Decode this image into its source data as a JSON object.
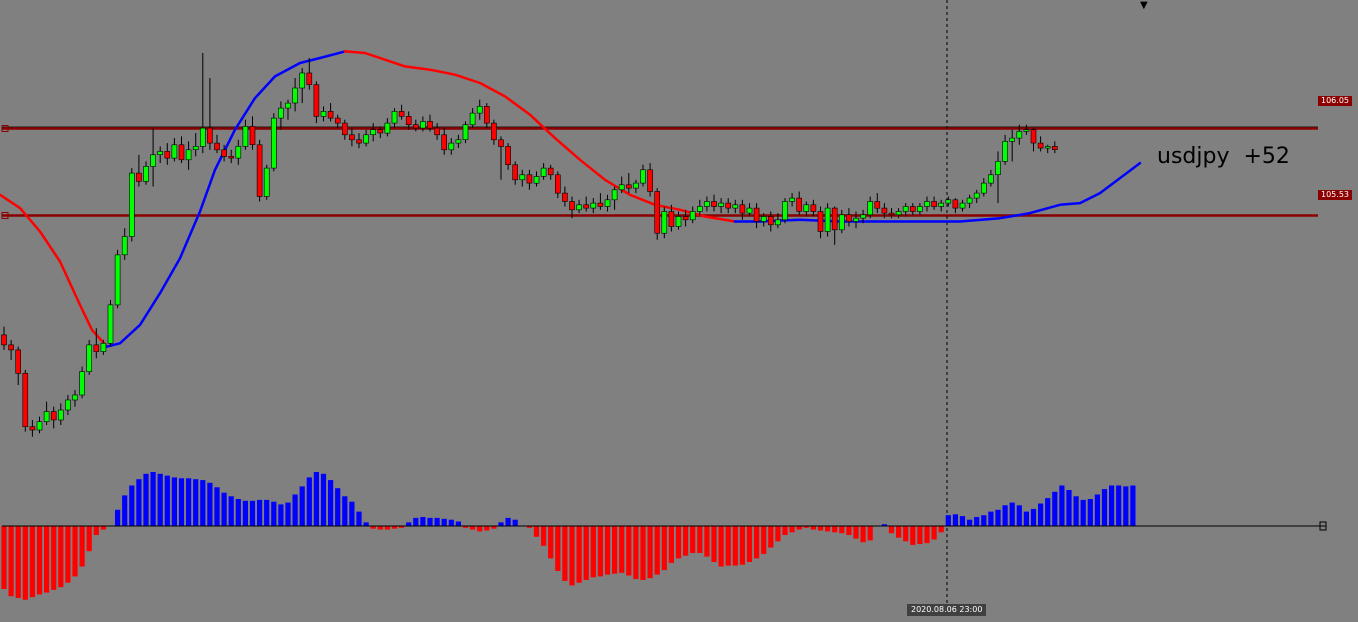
{
  "chart_data": {
    "type": "candlestick",
    "symbol_label": "usdjpy  +52",
    "selected_time": "2020.08.06 23:00",
    "levels": [
      {
        "price": 106.05,
        "label": "106.05"
      },
      {
        "price": 105.53,
        "label": "105.53"
      }
    ],
    "current_price": 105.91,
    "price_range": [
      104.18,
      106.65
    ],
    "colors": {
      "background": "#808080",
      "bull": "#00ff00",
      "bear": "#ff0000",
      "wick": "#000000",
      "level": "#8b0000",
      "ma_up": "#0000ff",
      "ma_down": "#ff0000",
      "hist_pos": "#0000ff",
      "hist_neg": "#ff0000"
    },
    "candles": [
      [
        104.81,
        104.86,
        104.72,
        104.75
      ],
      [
        104.75,
        104.78,
        104.66,
        104.72
      ],
      [
        104.72,
        104.74,
        104.51,
        104.58
      ],
      [
        104.58,
        104.6,
        104.23,
        104.26
      ],
      [
        104.26,
        104.3,
        104.2,
        104.24
      ],
      [
        104.24,
        104.32,
        104.22,
        104.29
      ],
      [
        104.29,
        104.41,
        104.27,
        104.35
      ],
      [
        104.35,
        104.38,
        104.25,
        104.3
      ],
      [
        104.3,
        104.4,
        104.27,
        104.36
      ],
      [
        104.36,
        104.45,
        104.33,
        104.42
      ],
      [
        104.42,
        104.48,
        104.38,
        104.45
      ],
      [
        104.45,
        104.62,
        104.43,
        104.59
      ],
      [
        104.59,
        104.78,
        104.57,
        104.75
      ],
      [
        104.75,
        104.85,
        104.67,
        104.71
      ],
      [
        104.71,
        104.78,
        104.69,
        104.76
      ],
      [
        104.76,
        105.02,
        104.74,
        104.99
      ],
      [
        104.99,
        105.32,
        104.97,
        105.29
      ],
      [
        105.29,
        105.45,
        105.26,
        105.4
      ],
      [
        105.4,
        105.81,
        105.37,
        105.78
      ],
      [
        105.78,
        105.89,
        105.7,
        105.73
      ],
      [
        105.73,
        105.85,
        105.71,
        105.82
      ],
      [
        105.82,
        106.05,
        105.7,
        105.89
      ],
      [
        105.89,
        105.94,
        105.84,
        105.91
      ],
      [
        105.91,
        105.96,
        105.83,
        105.87
      ],
      [
        105.87,
        105.99,
        105.85,
        105.95
      ],
      [
        105.95,
        106.0,
        105.84,
        105.86
      ],
      [
        105.86,
        105.97,
        105.8,
        105.92
      ],
      [
        105.92,
        106.02,
        105.88,
        105.94
      ],
      [
        105.94,
        106.5,
        105.9,
        106.05
      ],
      [
        106.05,
        106.35,
        105.92,
        105.96
      ],
      [
        105.96,
        106.01,
        105.9,
        105.92
      ],
      [
        105.92,
        105.95,
        105.85,
        105.88
      ],
      [
        105.88,
        105.92,
        105.84,
        105.87
      ],
      [
        105.87,
        105.98,
        105.83,
        105.94
      ],
      [
        105.94,
        106.1,
        105.92,
        106.06
      ],
      [
        106.06,
        106.12,
        105.92,
        105.95
      ],
      [
        105.95,
        105.98,
        105.61,
        105.64
      ],
      [
        105.64,
        105.83,
        105.62,
        105.81
      ],
      [
        105.81,
        106.14,
        105.79,
        106.11
      ],
      [
        106.11,
        106.21,
        106.04,
        106.17
      ],
      [
        106.17,
        106.22,
        106.1,
        106.2
      ],
      [
        106.2,
        106.35,
        106.15,
        106.29
      ],
      [
        106.29,
        106.41,
        106.2,
        106.38
      ],
      [
        106.38,
        106.47,
        106.28,
        106.31
      ],
      [
        106.31,
        106.33,
        106.08,
        106.12
      ],
      [
        106.12,
        106.18,
        106.09,
        106.15
      ],
      [
        106.15,
        106.2,
        106.09,
        106.11
      ],
      [
        106.11,
        106.13,
        106.05,
        106.08
      ],
      [
        106.08,
        106.1,
        105.98,
        106.01
      ],
      [
        106.01,
        106.05,
        105.94,
        105.98
      ],
      [
        105.98,
        106.02,
        105.93,
        105.96
      ],
      [
        105.96,
        106.04,
        105.94,
        106.01
      ],
      [
        106.01,
        106.08,
        105.97,
        106.04
      ],
      [
        106.04,
        106.06,
        105.99,
        106.02
      ],
      [
        106.02,
        106.11,
        106.0,
        106.08
      ],
      [
        106.08,
        106.17,
        106.05,
        106.15
      ],
      [
        106.15,
        106.19,
        106.1,
        106.12
      ],
      [
        106.12,
        106.15,
        106.04,
        106.07
      ],
      [
        106.07,
        106.1,
        106.03,
        106.05
      ],
      [
        106.05,
        106.12,
        106.03,
        106.09
      ],
      [
        106.09,
        106.13,
        106.03,
        106.05
      ],
      [
        106.05,
        106.08,
        105.98,
        106.01
      ],
      [
        106.01,
        106.05,
        105.89,
        105.92
      ],
      [
        105.92,
        105.99,
        105.89,
        105.96
      ],
      [
        105.96,
        106.01,
        105.93,
        105.98
      ],
      [
        105.98,
        106.09,
        105.96,
        106.07
      ],
      [
        106.07,
        106.17,
        106.05,
        106.14
      ],
      [
        106.14,
        106.22,
        106.1,
        106.18
      ],
      [
        106.18,
        106.2,
        106.05,
        106.08
      ],
      [
        106.08,
        106.1,
        105.95,
        105.98
      ],
      [
        105.98,
        106.0,
        105.74,
        105.94
      ],
      [
        105.94,
        105.96,
        105.8,
        105.83
      ],
      [
        105.83,
        105.85,
        105.71,
        105.74
      ],
      [
        105.74,
        105.8,
        105.7,
        105.77
      ],
      [
        105.77,
        105.8,
        105.68,
        105.72
      ],
      [
        105.72,
        105.79,
        105.7,
        105.76
      ],
      [
        105.76,
        105.84,
        105.74,
        105.81
      ],
      [
        105.81,
        105.83,
        105.74,
        105.77
      ],
      [
        105.77,
        105.79,
        105.63,
        105.66
      ],
      [
        105.66,
        105.7,
        105.58,
        105.61
      ],
      [
        105.61,
        105.64,
        105.51,
        105.56
      ],
      [
        105.56,
        105.62,
        105.54,
        105.59
      ],
      [
        105.59,
        105.64,
        105.55,
        105.57
      ],
      [
        105.57,
        105.63,
        105.54,
        105.6
      ],
      [
        105.6,
        105.66,
        105.56,
        105.58
      ],
      [
        105.58,
        105.65,
        105.55,
        105.62
      ],
      [
        105.62,
        105.7,
        105.56,
        105.68
      ],
      [
        105.68,
        105.76,
        105.66,
        105.71
      ],
      [
        105.71,
        105.78,
        105.66,
        105.69
      ],
      [
        105.69,
        105.74,
        105.66,
        105.72
      ],
      [
        105.72,
        105.83,
        105.7,
        105.8
      ],
      [
        105.8,
        105.84,
        105.64,
        105.67
      ],
      [
        105.67,
        105.69,
        105.38,
        105.42
      ],
      [
        105.42,
        105.58,
        105.39,
        105.55
      ],
      [
        105.55,
        105.59,
        105.43,
        105.46
      ],
      [
        105.46,
        105.55,
        105.44,
        105.52
      ],
      [
        105.52,
        105.56,
        105.46,
        105.5
      ],
      [
        105.5,
        105.58,
        105.48,
        105.55
      ],
      [
        105.55,
        105.62,
        105.52,
        105.58
      ],
      [
        105.58,
        105.64,
        105.55,
        105.61
      ],
      [
        105.61,
        105.65,
        105.55,
        105.58
      ],
      [
        105.58,
        105.63,
        105.54,
        105.6
      ],
      [
        105.6,
        105.63,
        105.54,
        105.57
      ],
      [
        105.57,
        105.62,
        105.54,
        105.59
      ],
      [
        105.59,
        105.62,
        105.5,
        105.54
      ],
      [
        105.54,
        105.6,
        105.52,
        105.57
      ],
      [
        105.57,
        105.6,
        105.45,
        105.49
      ],
      [
        105.49,
        105.54,
        105.46,
        105.52
      ],
      [
        105.52,
        105.55,
        105.43,
        105.47
      ],
      [
        105.47,
        105.54,
        105.45,
        105.5
      ],
      [
        105.5,
        105.63,
        105.48,
        105.61
      ],
      [
        105.61,
        105.66,
        105.58,
        105.63
      ],
      [
        105.63,
        105.67,
        105.53,
        105.55
      ],
      [
        105.55,
        105.61,
        105.52,
        105.59
      ],
      [
        105.59,
        105.62,
        105.52,
        105.55
      ],
      [
        105.55,
        105.58,
        105.39,
        105.43
      ],
      [
        105.43,
        105.6,
        105.4,
        105.57
      ],
      [
        105.57,
        105.58,
        105.35,
        105.44
      ],
      [
        105.44,
        105.56,
        105.42,
        105.53
      ],
      [
        105.53,
        105.57,
        105.46,
        105.49
      ],
      [
        105.49,
        105.55,
        105.45,
        105.51
      ],
      [
        105.51,
        105.56,
        105.48,
        105.53
      ],
      [
        105.53,
        105.64,
        105.51,
        105.61
      ],
      [
        105.61,
        105.66,
        105.54,
        105.57
      ],
      [
        105.57,
        105.6,
        105.51,
        105.54
      ],
      [
        105.54,
        105.57,
        105.51,
        105.53
      ],
      [
        105.53,
        105.57,
        105.51,
        105.55
      ],
      [
        105.55,
        105.6,
        105.52,
        105.58
      ],
      [
        105.58,
        105.6,
        105.53,
        105.55
      ],
      [
        105.55,
        105.6,
        105.53,
        105.58
      ],
      [
        105.58,
        105.64,
        105.55,
        105.61
      ],
      [
        105.61,
        105.64,
        105.56,
        105.58
      ],
      [
        105.58,
        105.62,
        105.55,
        105.6
      ],
      [
        105.6,
        105.64,
        105.58,
        105.62
      ],
      [
        105.62,
        105.63,
        105.54,
        105.57
      ],
      [
        105.57,
        105.62,
        105.55,
        105.6
      ],
      [
        105.6,
        105.65,
        105.57,
        105.63
      ],
      [
        105.63,
        105.68,
        105.6,
        105.66
      ],
      [
        105.66,
        105.75,
        105.64,
        105.72
      ],
      [
        105.72,
        105.8,
        105.7,
        105.77
      ],
      [
        105.77,
        105.91,
        105.6,
        105.85
      ],
      [
        105.85,
        106.01,
        105.83,
        105.97
      ],
      [
        105.97,
        106.04,
        105.85,
        105.99
      ],
      [
        105.99,
        106.07,
        105.95,
        106.03
      ],
      [
        106.03,
        106.07,
        106.01,
        106.04
      ],
      [
        106.04,
        106.05,
        105.91,
        105.96
      ],
      [
        105.96,
        106.0,
        105.91,
        105.93
      ],
      [
        105.93,
        105.95,
        105.9,
        105.94
      ],
      [
        105.94,
        105.97,
        105.9,
        105.92
      ]
    ],
    "ma_fast": [
      [
        0,
        105.65
      ],
      [
        20,
        105.57
      ],
      [
        40,
        105.43
      ],
      [
        60,
        105.25
      ],
      [
        80,
        104.99
      ],
      [
        92,
        104.84
      ],
      [
        107,
        104.74
      ],
      [
        120,
        104.76
      ],
      [
        140,
        104.87
      ],
      [
        160,
        105.06
      ],
      [
        180,
        105.27
      ],
      [
        200,
        105.55
      ],
      [
        215,
        105.8
      ],
      [
        235,
        106.04
      ],
      [
        255,
        106.23
      ],
      [
        275,
        106.36
      ],
      [
        300,
        106.44
      ],
      [
        320,
        106.47
      ],
      [
        345,
        106.51
      ],
      [
        365,
        106.5
      ],
      [
        385,
        106.46
      ],
      [
        405,
        106.42
      ],
      [
        430,
        106.4
      ],
      [
        455,
        106.37
      ],
      [
        480,
        106.32
      ],
      [
        505,
        106.24
      ],
      [
        530,
        106.13
      ],
      [
        555,
        105.99
      ],
      [
        580,
        105.86
      ],
      [
        605,
        105.74
      ],
      [
        630,
        105.65
      ],
      [
        655,
        105.59
      ],
      [
        680,
        105.56
      ],
      [
        705,
        105.52
      ],
      [
        735,
        105.49
      ],
      [
        760,
        105.49
      ],
      [
        800,
        105.5
      ],
      [
        840,
        105.49
      ],
      [
        880,
        105.49
      ],
      [
        920,
        105.49
      ],
      [
        960,
        105.49
      ],
      [
        1000,
        105.51
      ],
      [
        1030,
        105.54
      ],
      [
        1060,
        105.59
      ],
      [
        1080,
        105.6
      ],
      [
        1100,
        105.66
      ],
      [
        1120,
        105.75
      ],
      [
        1140,
        105.84
      ]
    ],
    "ma_turns": [
      [
        0,
        "down"
      ],
      [
        107,
        "up"
      ],
      [
        345,
        "down"
      ],
      [
        735,
        "up"
      ]
    ],
    "histogram": [
      -0.7,
      -0.78,
      -0.8,
      -0.82,
      -0.79,
      -0.76,
      -0.74,
      -0.71,
      -0.68,
      -0.63,
      -0.56,
      -0.45,
      -0.28,
      -0.1,
      -0.04,
      0.0,
      0.18,
      0.34,
      0.45,
      0.52,
      0.58,
      0.6,
      0.58,
      0.56,
      0.54,
      0.53,
      0.53,
      0.52,
      0.51,
      0.48,
      0.43,
      0.37,
      0.33,
      0.3,
      0.28,
      0.28,
      0.29,
      0.29,
      0.27,
      0.24,
      0.26,
      0.35,
      0.44,
      0.54,
      0.6,
      0.58,
      0.51,
      0.42,
      0.33,
      0.27,
      0.16,
      0.04,
      -0.03,
      -0.04,
      -0.04,
      -0.03,
      -0.02,
      0.04,
      0.09,
      0.1,
      0.09,
      0.09,
      0.08,
      0.07,
      0.05,
      -0.02,
      -0.04,
      -0.06,
      -0.05,
      -0.03,
      0.04,
      0.09,
      0.07,
      0.0,
      -0.02,
      -0.12,
      -0.22,
      -0.36,
      -0.5,
      -0.61,
      -0.66,
      -0.63,
      -0.6,
      -0.57,
      -0.56,
      -0.54,
      -0.53,
      -0.52,
      -0.55,
      -0.59,
      -0.6,
      -0.58,
      -0.54,
      -0.49,
      -0.41,
      -0.36,
      -0.33,
      -0.3,
      -0.3,
      -0.34,
      -0.4,
      -0.45,
      -0.44,
      -0.44,
      -0.43,
      -0.4,
      -0.36,
      -0.31,
      -0.24,
      -0.17,
      -0.1,
      -0.07,
      -0.04,
      -0.02,
      -0.04,
      -0.05,
      -0.06,
      -0.07,
      -0.08,
      -0.1,
      -0.14,
      -0.18,
      -0.16,
      0.0,
      0.02,
      -0.08,
      -0.13,
      -0.17,
      -0.21,
      -0.2,
      -0.19,
      -0.15,
      -0.07,
      0.12,
      0.13,
      0.11,
      0.07,
      0.1,
      0.12,
      0.16,
      0.18,
      0.23,
      0.26,
      0.23,
      0.16,
      0.19,
      0.25,
      0.31,
      0.38,
      0.45,
      0.4,
      0.33,
      0.29,
      0.3,
      0.35,
      0.41,
      0.45,
      0.45,
      0.44,
      0.45
    ]
  }
}
